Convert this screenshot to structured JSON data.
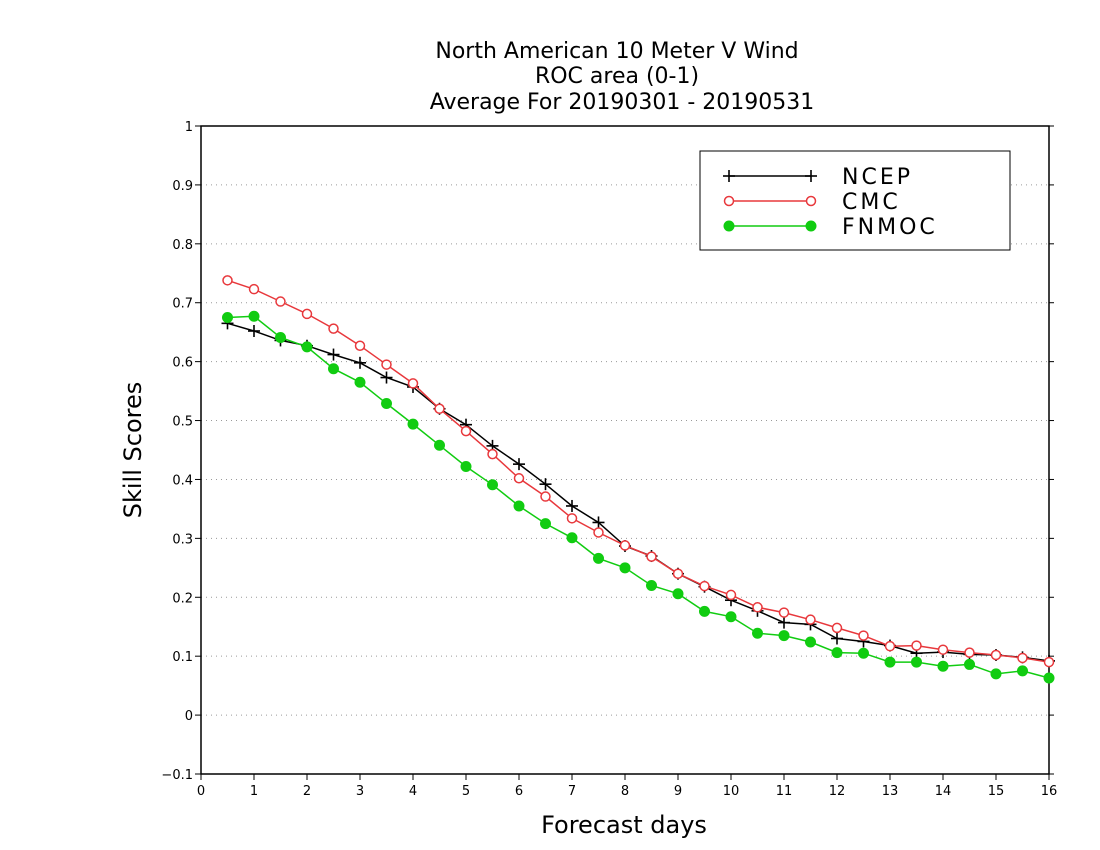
{
  "chart_data": {
    "type": "line",
    "title_lines": [
      "North American 10 Meter V Wind",
      "ROC area (0-1)",
      "Average For 20190301 - 20190531"
    ],
    "xlabel": "Forecast days",
    "ylabel": "Skill Scores",
    "xlim": [
      0,
      16
    ],
    "ylim": [
      -0.1,
      1
    ],
    "xticks": [
      0,
      1,
      2,
      3,
      4,
      5,
      6,
      7,
      8,
      9,
      10,
      11,
      12,
      13,
      14,
      15,
      16
    ],
    "xtick_labels": [
      "0",
      "1",
      "2",
      "3",
      "4",
      "5",
      "6",
      "7",
      "8",
      "9",
      "10",
      "11",
      "12",
      "13",
      "14",
      "15",
      "16"
    ],
    "yticks": [
      -0.1,
      0,
      0.1,
      0.2,
      0.3,
      0.4,
      0.5,
      0.6,
      0.7,
      0.8,
      0.9,
      1
    ],
    "ytick_labels": [
      "−0.1",
      "0",
      "0.1",
      "0.2",
      "0.3",
      "0.4",
      "0.5",
      "0.6",
      "0.7",
      "0.8",
      "0.9",
      "1"
    ],
    "grid": "horizontal-dotted",
    "legend_position": "top-right",
    "x": [
      0.5,
      1,
      1.5,
      2,
      2.5,
      3,
      3.5,
      4,
      4.5,
      5,
      5.5,
      6,
      6.5,
      7,
      7.5,
      8,
      8.5,
      9,
      9.5,
      10,
      10.5,
      11,
      11.5,
      12,
      12.5,
      13,
      13.5,
      14,
      14.5,
      15,
      15.5,
      16
    ],
    "series": [
      {
        "name": "NCEP",
        "color": "#000000",
        "marker": "plus",
        "values": [
          0.665,
          0.652,
          0.636,
          0.627,
          0.612,
          0.598,
          0.573,
          0.557,
          0.52,
          0.493,
          0.457,
          0.426,
          0.392,
          0.355,
          0.327,
          0.287,
          0.27,
          0.24,
          0.218,
          0.195,
          0.177,
          0.157,
          0.154,
          0.13,
          0.125,
          0.118,
          0.105,
          0.107,
          0.103,
          0.102,
          0.098,
          0.092
        ]
      },
      {
        "name": "CMC",
        "color": "#e8383c",
        "marker": "open-circle",
        "values": [
          0.738,
          0.723,
          0.702,
          0.681,
          0.656,
          0.627,
          0.595,
          0.563,
          0.52,
          0.482,
          0.443,
          0.402,
          0.371,
          0.334,
          0.31,
          0.288,
          0.269,
          0.24,
          0.219,
          0.204,
          0.183,
          0.174,
          0.162,
          0.148,
          0.135,
          0.117,
          0.118,
          0.111,
          0.106,
          0.102,
          0.097,
          0.09
        ]
      },
      {
        "name": "FNMOC",
        "color": "#11cc11",
        "marker": "filled-circle",
        "values": [
          0.675,
          0.677,
          0.641,
          0.625,
          0.588,
          0.565,
          0.529,
          0.494,
          0.458,
          0.422,
          0.391,
          0.355,
          0.325,
          0.301,
          0.266,
          0.25,
          0.22,
          0.206,
          0.176,
          0.167,
          0.139,
          0.135,
          0.124,
          0.106,
          0.105,
          0.09,
          0.09,
          0.083,
          0.086,
          0.07,
          0.075,
          0.063
        ]
      }
    ]
  }
}
